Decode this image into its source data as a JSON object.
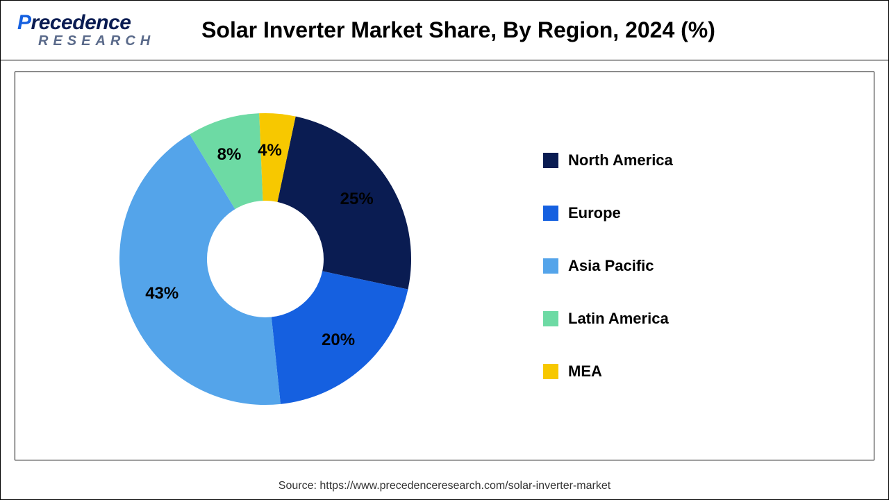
{
  "logo": {
    "line1_a": "P",
    "line1_b": "recedence",
    "line2": "RESEARCH"
  },
  "title": "Solar Inverter Market Share, By Region, 2024 (%)",
  "source_line": "Source: https://www.precedenceresearch.com/solar-inverter-market",
  "chart": {
    "type": "donut",
    "background_color": "#ffffff",
    "inner_radius_ratio": 0.4,
    "start_angle_deg": 12,
    "direction": "clockwise",
    "label_fontsize": 24,
    "label_fontweight": "700",
    "label_color": "#000000",
    "slices": [
      {
        "region": "North America",
        "value": 25,
        "label": "25%",
        "color": "#0a1c52"
      },
      {
        "region": "Europe",
        "value": 20,
        "label": "20%",
        "color": "#1560e0"
      },
      {
        "region": "Asia Pacific",
        "value": 43,
        "label": "43%",
        "color": "#54a4ea"
      },
      {
        "region": "Latin America",
        "value": 8,
        "label": "8%",
        "color": "#6ddaa4"
      },
      {
        "region": "MEA",
        "value": 4,
        "label": "4%",
        "color": "#f7c800"
      }
    ],
    "legend": {
      "position": "right",
      "fontsize": 22,
      "fontweight": "700",
      "swatch_size": 22
    }
  }
}
